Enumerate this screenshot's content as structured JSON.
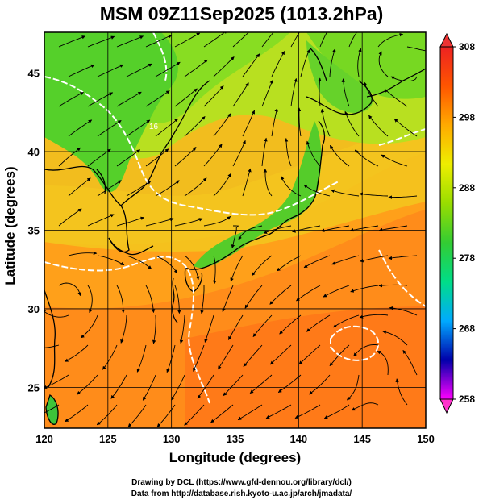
{
  "title": "MSM 09Z11Sep2025 (1013.2hPa)",
  "xlabel": "Longitude (degrees)",
  "ylabel": "Latitude  (degrees)",
  "credits": {
    "line1": "Drawing by DCL (https://www.gfd-dennou.org/library/dcl/)",
    "line2": "Data from http://database.rish.kyoto-u.ac.jp/arch/jmadata/"
  },
  "chart_data": {
    "type": "heatmap",
    "x_range": [
      120,
      150
    ],
    "y_range": [
      22.4,
      47.6
    ],
    "x_ticks": [
      "120",
      "125",
      "130",
      "135",
      "140",
      "145",
      "150"
    ],
    "x_tick_values": [
      120,
      125,
      130,
      135,
      140,
      145,
      150
    ],
    "y_ticks": [
      "25",
      "30",
      "35",
      "40",
      "45"
    ],
    "y_tick_values": [
      25,
      30,
      35,
      40,
      45
    ],
    "grid": true,
    "colorbar": {
      "range": [
        258,
        308
      ],
      "labels": [
        "308",
        "298",
        "288",
        "278",
        "268",
        "258"
      ],
      "label_values": [
        308,
        298,
        288,
        278,
        268,
        258
      ],
      "colors": [
        "#ff00ff",
        "#0000aa",
        "#00aaff",
        "#00dd88",
        "#33cc33",
        "#99dd00",
        "#eeee00",
        "#ffaa00",
        "#ff5500",
        "#ee2222"
      ]
    },
    "contour_label": "16",
    "colors": {
      "warm": "#ff8c1a",
      "mid": "#f2c81e",
      "cool": "#8ee01e",
      "land_cool": "#22cc33",
      "coast": "#000000",
      "contour": "#ffffff"
    }
  }
}
